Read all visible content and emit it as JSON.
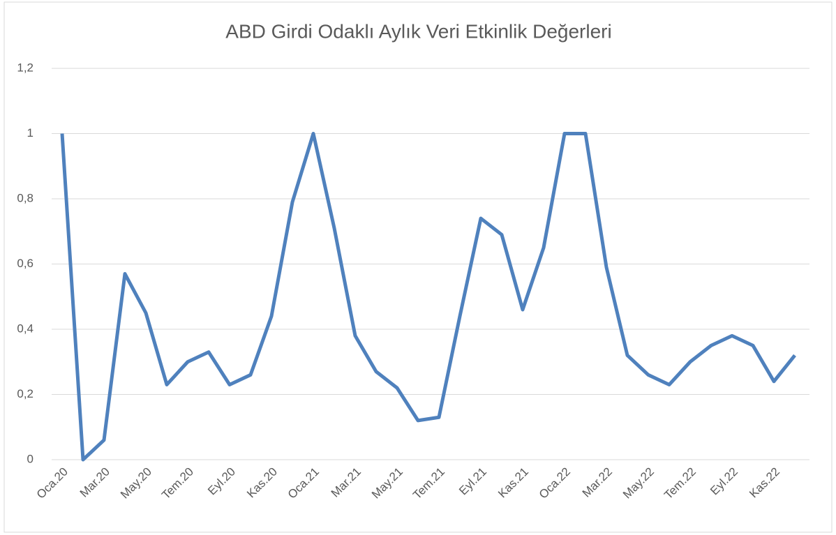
{
  "chart_data": {
    "type": "line",
    "title": "ABD Girdi Odaklı Aylık Veri Etkinlik Değerleri",
    "categories": [
      "Oca.20",
      null,
      "Mar.20",
      null,
      "May.20",
      null,
      "Tem.20",
      null,
      "Eyl.20",
      null,
      "Kas.20",
      null,
      "Oca.21",
      null,
      "Mar.21",
      null,
      "May.21",
      null,
      "Tem.21",
      null,
      "Eyl.21",
      null,
      "Kas.21",
      null,
      "Oca.22",
      null,
      "Mar.22",
      null,
      "May.22",
      null,
      "Tem.22",
      null,
      "Eyl.22",
      null,
      "Kas.22",
      null
    ],
    "series": [
      {
        "color": "#4f81bd",
        "values": [
          1,
          0,
          0.06,
          0.57,
          0.45,
          0.23,
          0.3,
          0.33,
          0.23,
          0.26,
          0.44,
          0.79,
          1,
          0.71,
          0.38,
          0.27,
          0.22,
          0.12,
          0.13,
          0.44,
          0.74,
          0.69,
          0.46,
          0.65,
          1,
          1,
          0.59,
          0.32,
          0.26,
          0.23,
          0.3,
          0.35,
          0.38,
          0.35,
          0.24,
          0.32
        ]
      }
    ],
    "ylim": [
      0,
      1.2
    ],
    "yticks": [
      0,
      {
        "value": 0.2,
        "label": "0,2"
      },
      {
        "value": 0.4,
        "label": "0,4"
      },
      {
        "value": 0.6,
        "label": "0,6"
      },
      {
        "value": 0.8,
        "label": "0,8"
      },
      1,
      {
        "value": 1.2,
        "label": "1,2"
      }
    ],
    "grid": true
  }
}
